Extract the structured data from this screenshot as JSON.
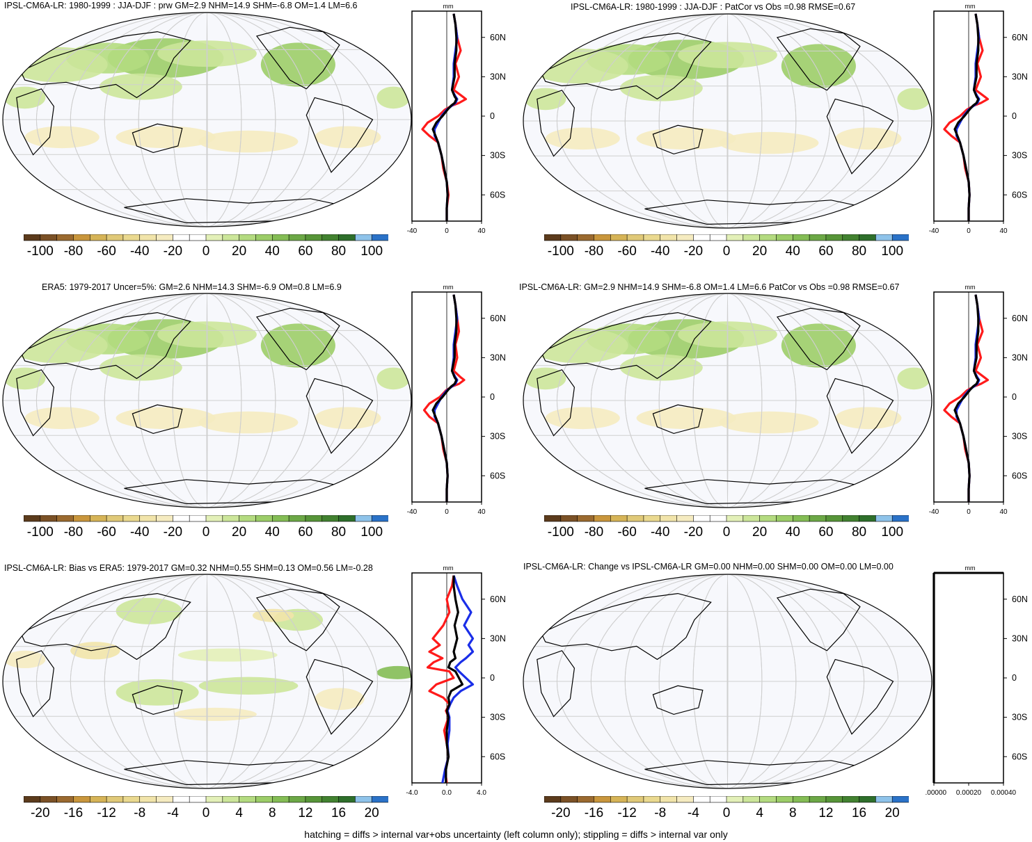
{
  "footer": "hatching = diffs > internal var+obs uncertainty (left column only); stippling = diffs > internal var only",
  "colors": {
    "palette": [
      "#5c3b1c",
      "#7b5126",
      "#9b6a2f",
      "#c9963c",
      "#d6b457",
      "#e0c978",
      "#ead98f",
      "#f1e4aa",
      "#f5ebc0",
      "#ffffff",
      "#ffffff",
      "#e3f0b8",
      "#cce69a",
      "#b4db80",
      "#9ccd68",
      "#84bd55",
      "#6ca846",
      "#579538",
      "#428230",
      "#2e6f2b",
      "#8ec3ea",
      "#2a72c8"
    ],
    "ocean": "#f7f8fc",
    "grid": "#cfcfcf",
    "prof_red": "#ff1a1a",
    "prof_blue": "#1a2ee8",
    "prof_black": "#000000"
  },
  "panels": [
    {
      "title": "IPSL-CM6A-LR: 1980-1999 : JJA-DJF : prw GM=2.9 NHM=14.9 SHM=-6.8 OM=1.4 LM=6.6",
      "cb_labels": [
        "-100",
        "-80",
        "-60",
        "-40",
        "-20",
        "0",
        "20",
        "40",
        "60",
        "80",
        "100"
      ],
      "prof_unit": "mm",
      "prof_yticks": [
        "60N",
        "30N",
        "0",
        "30S",
        "60S"
      ],
      "prof_xticks": [
        "-40",
        "0",
        "40"
      ],
      "chart_data": {
        "type": "line",
        "xlim": [
          -40,
          40
        ],
        "ylim": [
          -80,
          80
        ],
        "series": [
          {
            "color": "red",
            "x": [
              0,
              0,
              2,
              0,
              -4,
              -6,
              -8,
              -10,
              -20,
              -28,
              -22,
              -10,
              -2,
              6,
              14,
              22,
              18,
              8,
              14,
              10,
              16,
              12,
              10,
              8
            ],
            "y": [
              -80,
              -70,
              -60,
              -50,
              -40,
              -30,
              -25,
              -20,
              -15,
              -10,
              -5,
              0,
              5,
              8,
              10,
              13,
              15,
              20,
              30,
              40,
              50,
              60,
              70,
              78
            ]
          },
          {
            "color": "blue",
            "x": [
              0,
              0,
              1,
              0,
              -3,
              -6,
              -8,
              -10,
              -14,
              -14,
              -10,
              -6,
              0,
              6,
              10,
              12,
              10,
              6,
              8,
              8,
              10,
              12,
              10,
              8
            ],
            "y": [
              -80,
              -70,
              -60,
              -50,
              -40,
              -30,
              -25,
              -20,
              -15,
              -10,
              -5,
              0,
              5,
              8,
              10,
              13,
              15,
              20,
              30,
              40,
              50,
              60,
              70,
              78
            ]
          },
          {
            "color": "black",
            "x": [
              0,
              0,
              1,
              0,
              -3,
              -6,
              -8,
              -10,
              -13,
              -16,
              -12,
              -5,
              1,
              5,
              9,
              11,
              9,
              6,
              9,
              9,
              11,
              11,
              10,
              8
            ],
            "y": [
              -80,
              -70,
              -60,
              -50,
              -40,
              -30,
              -25,
              -20,
              -15,
              -10,
              -5,
              0,
              5,
              8,
              10,
              13,
              15,
              20,
              30,
              40,
              50,
              60,
              70,
              78
            ]
          }
        ]
      }
    },
    {
      "title": "IPSL-CM6A-LR: 1980-1999 : JJA-DJF : PatCor vs Obs =0.98 RMSE=0.67",
      "cb_labels": [
        "-100",
        "-80",
        "-60",
        "-40",
        "-20",
        "0",
        "20",
        "40",
        "60",
        "80",
        "100"
      ],
      "prof_unit": "mm",
      "prof_yticks": [
        "60N",
        "30N",
        "0",
        "30S",
        "60S"
      ],
      "prof_xticks": [
        "-40",
        "0",
        "40"
      ],
      "chart_data": {
        "type": "line",
        "xlim": [
          -40,
          40
        ],
        "ylim": [
          -80,
          80
        ],
        "series": [
          {
            "color": "red",
            "x": [
              0,
              0,
              1,
              0,
              -4,
              -6,
              -8,
              -10,
              -20,
              -28,
              -22,
              -10,
              -2,
              6,
              14,
              22,
              18,
              8,
              14,
              10,
              16,
              12,
              10,
              8
            ],
            "y": [
              -80,
              -70,
              -60,
              -50,
              -40,
              -30,
              -25,
              -20,
              -15,
              -10,
              -5,
              0,
              5,
              8,
              10,
              13,
              15,
              20,
              30,
              40,
              50,
              60,
              70,
              78
            ]
          },
          {
            "color": "blue",
            "x": [
              0,
              0,
              1,
              0,
              -3,
              -6,
              -8,
              -10,
              -14,
              -14,
              -10,
              -6,
              0,
              6,
              10,
              12,
              10,
              6,
              8,
              8,
              10,
              12,
              10,
              8
            ],
            "y": [
              -80,
              -70,
              -60,
              -50,
              -40,
              -30,
              -25,
              -20,
              -15,
              -10,
              -5,
              0,
              5,
              8,
              10,
              13,
              15,
              20,
              30,
              40,
              50,
              60,
              70,
              78
            ]
          },
          {
            "color": "black",
            "x": [
              0,
              0,
              1,
              0,
              -3,
              -6,
              -8,
              -10,
              -13,
              -16,
              -12,
              -5,
              1,
              5,
              9,
              11,
              9,
              6,
              9,
              9,
              11,
              11,
              10,
              8
            ],
            "y": [
              -80,
              -70,
              -60,
              -50,
              -40,
              -30,
              -25,
              -20,
              -15,
              -10,
              -5,
              0,
              5,
              8,
              10,
              13,
              15,
              20,
              30,
              40,
              50,
              60,
              70,
              78
            ]
          }
        ]
      }
    },
    {
      "title": "ERA5: 1979-2017 Uncer=5%: GM=2.6 NHM=14.3 SHM=-6.9 OM=0.8 LM=6.9",
      "cb_labels": [
        "-100",
        "-80",
        "-60",
        "-40",
        "-20",
        "0",
        "20",
        "40",
        "60",
        "80",
        "100"
      ],
      "prof_unit": "mm",
      "prof_yticks": [
        "60N",
        "30N",
        "0",
        "30S",
        "60S"
      ],
      "prof_xticks": [
        "-40",
        "0",
        "40"
      ],
      "chart_data": {
        "type": "line",
        "xlim": [
          -40,
          40
        ],
        "ylim": [
          -80,
          80
        ],
        "series": [
          {
            "color": "red",
            "x": [
              0,
              0,
              1,
              0,
              -4,
              -6,
              -8,
              -10,
              -20,
              -26,
              -20,
              -8,
              -1,
              6,
              14,
              20,
              16,
              8,
              12,
              10,
              14,
              12,
              10,
              8
            ],
            "y": [
              -80,
              -70,
              -60,
              -50,
              -40,
              -30,
              -25,
              -20,
              -15,
              -10,
              -5,
              0,
              5,
              8,
              10,
              13,
              15,
              20,
              30,
              40,
              50,
              60,
              70,
              78
            ]
          },
          {
            "color": "blue",
            "x": [
              0,
              0,
              1,
              0,
              -3,
              -6,
              -8,
              -10,
              -14,
              -14,
              -10,
              -6,
              0,
              6,
              10,
              12,
              10,
              6,
              8,
              8,
              10,
              12,
              10,
              8
            ],
            "y": [
              -80,
              -70,
              -60,
              -50,
              -40,
              -30,
              -25,
              -20,
              -15,
              -10,
              -5,
              0,
              5,
              8,
              10,
              13,
              15,
              20,
              30,
              40,
              50,
              60,
              70,
              78
            ]
          },
          {
            "color": "black",
            "x": [
              0,
              0,
              1,
              0,
              -3,
              -6,
              -8,
              -10,
              -13,
              -16,
              -12,
              -5,
              1,
              5,
              9,
              11,
              9,
              6,
              9,
              9,
              11,
              11,
              10,
              8
            ],
            "y": [
              -80,
              -70,
              -60,
              -50,
              -40,
              -30,
              -25,
              -20,
              -15,
              -10,
              -5,
              0,
              5,
              8,
              10,
              13,
              15,
              20,
              30,
              40,
              50,
              60,
              70,
              78
            ]
          }
        ]
      }
    },
    {
      "title": "IPSL-CM6A-LR: GM=2.9 NHM=14.9 SHM=-6.8 OM=1.4 LM=6.6 PatCor vs Obs =0.98 RMSE=0.67",
      "cb_labels": [
        "-100",
        "-80",
        "-60",
        "-40",
        "-20",
        "0",
        "20",
        "40",
        "60",
        "80",
        "100"
      ],
      "prof_unit": "mm",
      "prof_yticks": [
        "60N",
        "30N",
        "0",
        "30S",
        "60S"
      ],
      "prof_xticks": [
        "-40",
        "0",
        "40"
      ],
      "chart_data": {
        "type": "line",
        "xlim": [
          -40,
          40
        ],
        "ylim": [
          -80,
          80
        ],
        "series": [
          {
            "color": "red",
            "x": [
              0,
              0,
              1,
              0,
              -4,
              -6,
              -8,
              -10,
              -20,
              -28,
              -22,
              -10,
              -2,
              6,
              14,
              22,
              18,
              8,
              14,
              10,
              16,
              12,
              10,
              8
            ],
            "y": [
              -80,
              -70,
              -60,
              -50,
              -40,
              -30,
              -25,
              -20,
              -15,
              -10,
              -5,
              0,
              5,
              8,
              10,
              13,
              15,
              20,
              30,
              40,
              50,
              60,
              70,
              78
            ]
          },
          {
            "color": "blue",
            "x": [
              0,
              0,
              1,
              0,
              -3,
              -6,
              -8,
              -10,
              -14,
              -14,
              -10,
              -6,
              0,
              6,
              10,
              12,
              10,
              6,
              8,
              8,
              10,
              12,
              10,
              8
            ],
            "y": [
              -80,
              -70,
              -60,
              -50,
              -40,
              -30,
              -25,
              -20,
              -15,
              -10,
              -5,
              0,
              5,
              8,
              10,
              13,
              15,
              20,
              30,
              40,
              50,
              60,
              70,
              78
            ]
          },
          {
            "color": "black",
            "x": [
              0,
              0,
              1,
              0,
              -3,
              -6,
              -8,
              -10,
              -13,
              -16,
              -12,
              -5,
              1,
              5,
              9,
              11,
              9,
              6,
              9,
              9,
              11,
              11,
              10,
              8
            ],
            "y": [
              -80,
              -70,
              -60,
              -50,
              -40,
              -30,
              -25,
              -20,
              -15,
              -10,
              -5,
              0,
              5,
              8,
              10,
              13,
              15,
              20,
              30,
              40,
              50,
              60,
              70,
              78
            ]
          }
        ]
      }
    },
    {
      "title": "IPSL-CM6A-LR: Bias vs ERA5: 1979-2017 GM=0.32 NHM=0.55 SHM=0.13 OM=0.56 LM=-0.28",
      "cb_labels": [
        "-20",
        "-16",
        "-12",
        "-8",
        "-4",
        "0",
        "4",
        "8",
        "12",
        "16",
        "20"
      ],
      "prof_unit": "mm",
      "prof_yticks": [
        "60N",
        "30N",
        "0",
        "30S",
        "60S"
      ],
      "prof_xticks": [
        "-4.0",
        "0.0",
        "4.0"
      ],
      "chart_data": {
        "type": "line",
        "xlim": [
          -4,
          4
        ],
        "ylim": [
          -80,
          80
        ],
        "series": [
          {
            "color": "red",
            "x": [
              0,
              -0.2,
              0.2,
              0,
              -0.3,
              0.2,
              -0.1,
              0.3,
              -0.4,
              -2.0,
              -1.2,
              0.8,
              0.3,
              -2.2,
              -1.5,
              -0.5,
              -2.0,
              -0.8,
              -1.6,
              -0.4,
              0.3,
              0,
              0.6,
              0.8
            ],
            "y": [
              -80,
              -70,
              -60,
              -50,
              -40,
              -30,
              -25,
              -20,
              -15,
              -10,
              -5,
              0,
              5,
              8,
              12,
              15,
              20,
              25,
              30,
              40,
              50,
              60,
              70,
              78
            ]
          },
          {
            "color": "blue",
            "x": [
              -0.5,
              -0.2,
              0.2,
              0.1,
              0.3,
              0.3,
              0.1,
              0.4,
              0.8,
              1.6,
              3.0,
              2.2,
              1.4,
              1.0,
              1.6,
              2.2,
              3.0,
              2.5,
              3.0,
              2.0,
              2.8,
              1.8,
              1.2,
              0.8
            ],
            "y": [
              -80,
              -70,
              -60,
              -50,
              -40,
              -30,
              -25,
              -20,
              -15,
              -10,
              -5,
              0,
              5,
              8,
              12,
              15,
              20,
              25,
              30,
              40,
              50,
              60,
              70,
              78
            ]
          },
          {
            "color": "black",
            "x": [
              -0.1,
              -0.1,
              0.2,
              0,
              0,
              0.2,
              0,
              0.3,
              0.2,
              0.5,
              1.8,
              1.4,
              1.0,
              0.2,
              0.4,
              1.0,
              0.8,
              1.0,
              1.2,
              0.9,
              1.3,
              1.0,
              0.8,
              0.8
            ],
            "y": [
              -80,
              -70,
              -60,
              -50,
              -40,
              -30,
              -25,
              -20,
              -15,
              -10,
              -5,
              0,
              5,
              8,
              12,
              15,
              20,
              25,
              30,
              40,
              50,
              60,
              70,
              78
            ]
          }
        ]
      }
    },
    {
      "title": "IPSL-CM6A-LR: Change vs IPSL-CM6A-LR GM=0.00 NHM=0.00 SHM=0.00 OM=0.00 LM=0.00",
      "cb_labels": [
        "-20",
        "-16",
        "-12",
        "-8",
        "-4",
        "0",
        "4",
        "8",
        "12",
        "16",
        "20"
      ],
      "prof_unit": "mm",
      "prof_yticks": [
        "60N",
        "30N",
        "0",
        "30S",
        "60S"
      ],
      "prof_xticks": [
        "0.00000",
        "0.00020",
        "0.00040"
      ],
      "chart_data": {
        "type": "line",
        "xlim": [
          0,
          0.0004
        ],
        "ylim": [
          -80,
          80
        ],
        "series": [
          {
            "color": "black",
            "x": [
              0,
              0
            ],
            "y": [
              -80,
              80
            ]
          }
        ]
      }
    }
  ]
}
